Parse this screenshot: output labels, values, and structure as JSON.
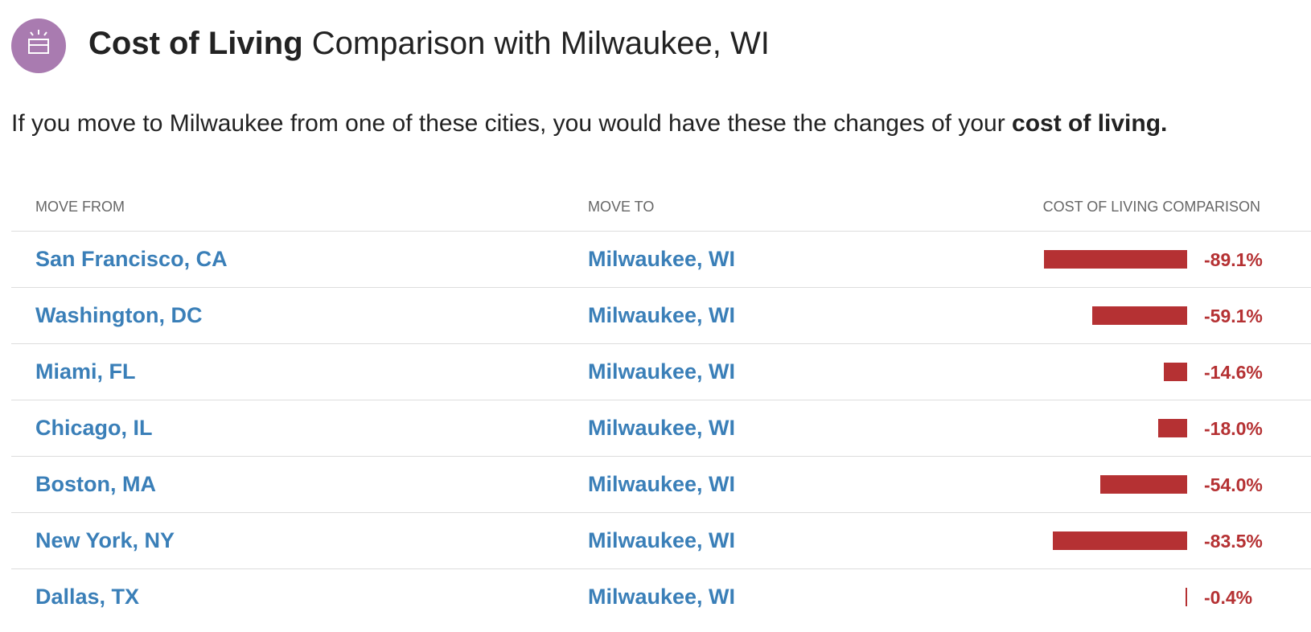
{
  "header": {
    "title_bold": "Cost of Living",
    "title_rest": "Comparison with Milwaukee, WI"
  },
  "intro": {
    "text": "If you move to Milwaukee from one of these cities, you would have these the changes of your",
    "bold": "cost of living."
  },
  "table": {
    "columns": [
      "MOVE FROM",
      "MOVE TO",
      "COST OF LIVING COMPARISON"
    ],
    "rows": [
      {
        "from": "San Francisco, CA",
        "to": "Milwaukee, WI",
        "value": -89.1,
        "value_label": "-89.1%"
      },
      {
        "from": "Washington, DC",
        "to": "Milwaukee, WI",
        "value": -59.1,
        "value_label": "-59.1%"
      },
      {
        "from": "Miami, FL",
        "to": "Milwaukee, WI",
        "value": -14.6,
        "value_label": "-14.6%"
      },
      {
        "from": "Chicago, IL",
        "to": "Milwaukee, WI",
        "value": -18.0,
        "value_label": "-18.0%"
      },
      {
        "from": "Boston, MA",
        "to": "Milwaukee, WI",
        "value": -54.0,
        "value_label": "-54.0%"
      },
      {
        "from": "New York, NY",
        "to": "Milwaukee, WI",
        "value": -83.5,
        "value_label": "-83.5%"
      },
      {
        "from": "Dallas, TX",
        "to": "Milwaukee, WI",
        "value": -0.4,
        "value_label": "-0.4%"
      }
    ]
  }
}
